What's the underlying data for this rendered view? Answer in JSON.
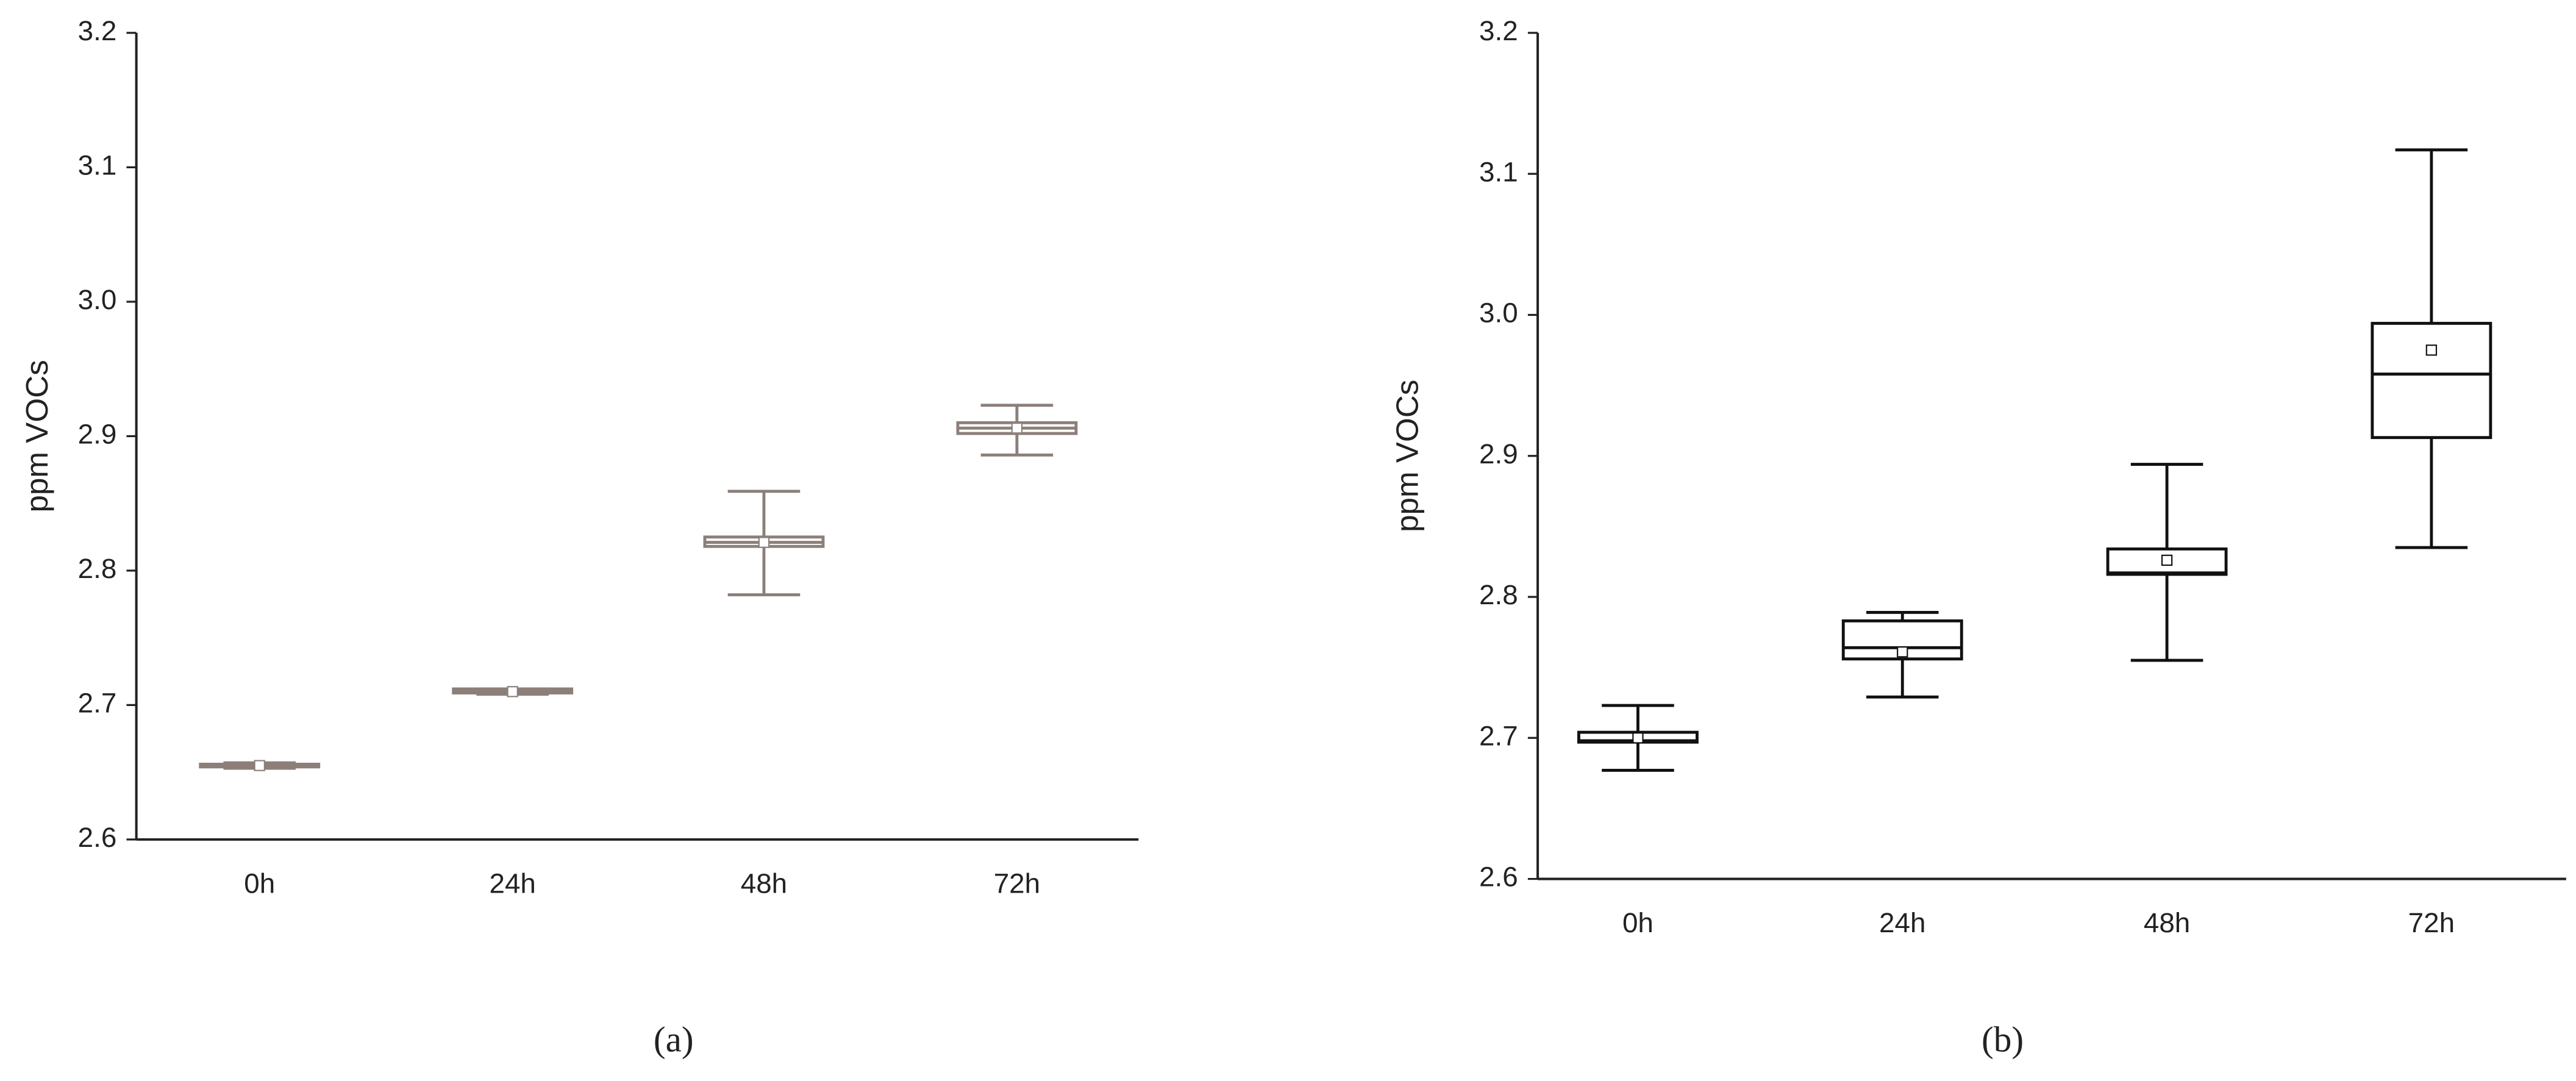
{
  "chart_data": [
    {
      "type": "box",
      "ylabel": "ppm VOCs",
      "caption": "(a)",
      "color": "#8c7f7a",
      "categories": [
        "0h",
        "24h",
        "48h",
        "72h"
      ],
      "min": [
        2.653,
        2.708,
        2.782,
        2.886
      ],
      "q1": [
        2.654,
        2.709,
        2.818,
        2.902
      ],
      "median": [
        2.655,
        2.71,
        2.821,
        2.906
      ],
      "q3": [
        2.656,
        2.712,
        2.825,
        2.91
      ],
      "max": [
        2.657,
        2.712,
        2.859,
        2.923
      ],
      "mean": [
        2.655,
        2.71,
        2.821,
        2.906
      ],
      "ylim": [
        2.6,
        3.2
      ],
      "yticks": [
        2.6,
        2.7,
        2.8,
        2.9,
        {
          "value": 3,
          "label": "3.0"
        },
        3.1,
        3.2
      ]
    },
    {
      "type": "box",
      "ylabel": "ppm VOCs",
      "caption": "(b)",
      "color": "#111111",
      "categories": [
        "0h",
        "24h",
        "48h",
        "72h"
      ],
      "min": [
        2.677,
        2.729,
        2.755,
        2.835
      ],
      "q1": [
        2.697,
        2.756,
        2.816,
        2.913
      ],
      "median": [
        2.698,
        2.764,
        2.817,
        2.958
      ],
      "q3": [
        2.704,
        2.783,
        2.834,
        2.994
      ],
      "max": [
        2.723,
        2.789,
        2.894,
        3.117
      ],
      "mean": [
        2.7,
        2.761,
        2.826,
        2.975
      ],
      "ylim": [
        2.6,
        3.2
      ],
      "yticks": [
        2.6,
        2.7,
        2.8,
        2.9,
        {
          "value": 3,
          "label": "3.0"
        },
        3.1,
        3.2
      ]
    }
  ]
}
